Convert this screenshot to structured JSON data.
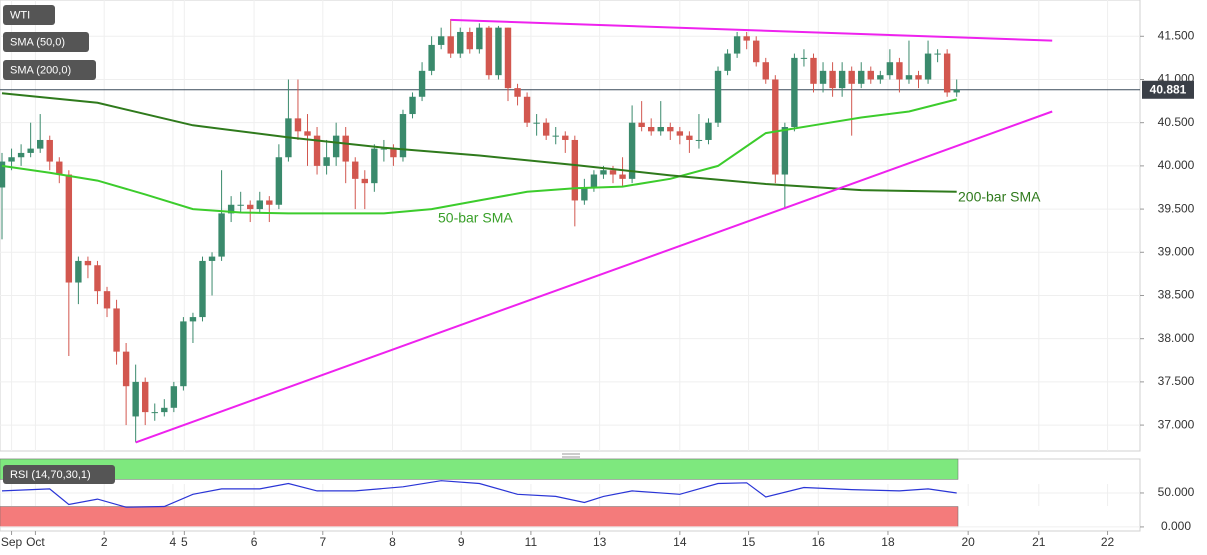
{
  "chart_data": [
    {
      "type": "candlestick",
      "title": "WTI",
      "up_color": "#3a8a6c",
      "down_color": "#d2574f",
      "open": [
        39.75,
        40.05,
        40.1,
        40.15,
        40.2,
        40.3,
        40.05,
        39.9,
        38.65,
        38.9,
        38.85,
        38.55,
        38.35,
        37.85,
        37.1,
        37.5,
        37.15,
        37.15,
        37.2,
        37.45,
        38.2,
        38.25,
        38.9,
        38.95,
        39.45,
        39.55,
        39.55,
        39.5,
        39.6,
        39.55,
        40.1,
        40.55,
        40.4,
        40.35,
        40.0,
        40.1,
        40.35,
        40.05,
        39.85,
        39.8,
        40.2,
        40.2,
        40.1,
        40.6,
        40.8,
        41.1,
        41.4,
        41.5,
        41.3,
        41.55,
        41.35,
        41.6,
        41.05,
        41.6,
        40.9,
        40.8,
        40.5,
        40.5,
        40.35,
        40.35,
        40.3,
        39.6,
        39.75,
        39.9,
        39.95,
        39.9,
        39.85,
        40.5,
        40.45,
        40.4,
        40.45,
        40.4,
        40.35,
        40.3,
        40.3,
        40.5,
        41.1,
        41.3,
        41.5,
        41.45,
        41.2,
        41.0,
        39.9,
        40.45,
        41.25,
        41.25,
        40.95,
        41.1,
        40.9,
        41.1,
        40.95,
        41.1,
        41.0,
        41.05,
        41.2,
        41.0,
        41.05,
        41.0,
        41.3,
        41.3,
        40.85
      ],
      "high": [
        40.15,
        40.2,
        40.25,
        40.5,
        40.6,
        40.35,
        40.1,
        39.95,
        38.95,
        38.95,
        38.9,
        38.6,
        38.45,
        37.95,
        37.7,
        37.55,
        37.25,
        37.3,
        37.5,
        38.25,
        38.3,
        38.95,
        39.0,
        39.95,
        39.65,
        39.7,
        39.6,
        39.7,
        39.65,
        40.25,
        41.0,
        41.0,
        40.6,
        40.45,
        40.3,
        40.5,
        40.45,
        40.1,
        39.95,
        40.25,
        40.3,
        40.25,
        40.65,
        40.85,
        41.2,
        41.5,
        41.6,
        41.7,
        41.6,
        41.6,
        41.65,
        41.62,
        41.62,
        41.6,
        40.95,
        40.85,
        40.6,
        40.55,
        40.45,
        40.4,
        40.35,
        39.85,
        39.95,
        40.0,
        40.0,
        40.1,
        40.7,
        40.75,
        40.55,
        40.75,
        40.5,
        40.45,
        40.4,
        40.6,
        40.55,
        41.15,
        41.35,
        41.55,
        41.55,
        41.5,
        41.25,
        41.05,
        40.5,
        41.3,
        41.35,
        41.3,
        41.2,
        41.2,
        41.2,
        41.15,
        41.2,
        41.15,
        41.1,
        41.35,
        41.25,
        41.45,
        41.1,
        41.45,
        41.35,
        41.35,
        41.0
      ],
      "low": [
        39.15,
        39.95,
        40.0,
        40.1,
        40.15,
        39.95,
        39.8,
        37.8,
        38.4,
        38.7,
        38.4,
        38.25,
        37.7,
        37.0,
        36.8,
        37.0,
        37.05,
        37.1,
        37.15,
        37.4,
        37.95,
        38.2,
        38.5,
        38.9,
        39.35,
        39.45,
        39.35,
        39.45,
        39.35,
        39.5,
        40.05,
        40.3,
        40.0,
        39.9,
        39.9,
        40.0,
        39.8,
        39.5,
        39.5,
        39.7,
        40.05,
        40.0,
        40.05,
        40.55,
        40.75,
        41.05,
        41.35,
        41.25,
        41.25,
        41.3,
        41.3,
        41.0,
        41.0,
        40.75,
        40.7,
        40.45,
        40.35,
        40.3,
        40.25,
        40.15,
        39.3,
        39.55,
        39.7,
        39.85,
        39.8,
        39.75,
        39.8,
        40.4,
        40.35,
        40.35,
        40.3,
        40.25,
        40.15,
        40.2,
        40.25,
        40.45,
        41.05,
        41.25,
        41.35,
        41.15,
        40.95,
        39.8,
        39.5,
        40.4,
        41.15,
        40.85,
        40.85,
        40.8,
        40.8,
        40.35,
        40.9,
        40.95,
        40.95,
        41.0,
        40.85,
        40.95,
        40.9,
        40.95,
        41.2,
        40.8,
        40.8
      ],
      "close": [
        40.05,
        40.1,
        40.15,
        40.2,
        40.3,
        40.05,
        39.9,
        38.65,
        38.9,
        38.85,
        38.55,
        38.35,
        37.85,
        37.45,
        37.5,
        37.15,
        37.15,
        37.2,
        37.45,
        38.2,
        38.25,
        38.9,
        38.95,
        39.45,
        39.55,
        39.55,
        39.5,
        39.6,
        39.55,
        40.1,
        40.55,
        40.4,
        40.35,
        40.0,
        40.1,
        40.35,
        40.05,
        39.85,
        39.8,
        40.2,
        40.2,
        40.1,
        40.6,
        40.8,
        41.1,
        41.4,
        41.5,
        41.3,
        41.55,
        41.35,
        41.6,
        41.05,
        41.6,
        40.9,
        40.8,
        40.5,
        40.5,
        40.35,
        40.35,
        40.3,
        39.6,
        39.75,
        39.9,
        39.95,
        39.9,
        39.85,
        40.5,
        40.45,
        40.4,
        40.45,
        40.4,
        40.35,
        40.3,
        40.3,
        40.5,
        41.1,
        41.3,
        41.5,
        41.45,
        41.2,
        41.0,
        39.9,
        40.45,
        41.25,
        41.25,
        40.95,
        41.1,
        40.9,
        41.1,
        40.95,
        41.1,
        41.0,
        41.05,
        41.2,
        41.0,
        41.05,
        41.0,
        41.3,
        41.3,
        40.85,
        40.88
      ],
      "series": [
        {
          "name": "SMA (50,0)",
          "color": "#3ccc2c",
          "x": [
            0,
            5,
            10,
            15,
            20,
            25,
            30,
            35,
            40,
            45,
            50,
            55,
            60,
            65,
            70,
            75,
            80,
            85,
            90,
            95,
            100
          ],
          "values": [
            40.0,
            39.92,
            39.83,
            39.67,
            39.5,
            39.46,
            39.45,
            39.45,
            39.45,
            39.5,
            39.6,
            39.7,
            39.74,
            39.76,
            39.85,
            40.0,
            40.38,
            40.47,
            40.56,
            40.63,
            40.77
          ]
        },
        {
          "name": "SMA (200,0)",
          "color": "#2f7a1c",
          "x": [
            0,
            10,
            20,
            30,
            40,
            50,
            60,
            70,
            80,
            90,
            100
          ],
          "values": [
            40.84,
            40.73,
            40.47,
            40.33,
            40.21,
            40.12,
            40.01,
            39.89,
            39.79,
            39.72,
            39.7
          ]
        }
      ],
      "trendlines": [
        {
          "color": "#ee22ee",
          "x": [
            47,
            110
          ],
          "values": [
            41.69,
            41.45
          ]
        },
        {
          "color": "#ee22ee",
          "x": [
            14,
            110
          ],
          "values": [
            36.8,
            40.63
          ]
        }
      ],
      "annotations": [
        {
          "text": "50-bar SMA",
          "color": "#3aa02a"
        },
        {
          "text": "200-bar SMA",
          "color": "#2f7a1c"
        }
      ],
      "current_price": 40.881,
      "xlim": [
        -0.21,
        119.2
      ],
      "xticks": [
        {
          "value": 1.0,
          "label": "Sep"
        },
        {
          "value": 3.5,
          "label": "Oct"
        },
        {
          "value": 10.7,
          "label": "2"
        },
        {
          "value": 17.9,
          "label": "4"
        },
        {
          "value": 19.1,
          "label": "5"
        },
        {
          "value": 26.4,
          "label": "6"
        },
        {
          "value": 33.6,
          "label": "7"
        },
        {
          "value": 40.9,
          "label": "8"
        },
        {
          "value": 48.1,
          "label": "9"
        },
        {
          "value": 55.4,
          "label": "11"
        },
        {
          "value": 62.6,
          "label": "13"
        },
        {
          "value": 71.0,
          "label": "14"
        },
        {
          "value": 78.2,
          "label": "15"
        },
        {
          "value": 85.5,
          "label": "16"
        },
        {
          "value": 92.8,
          "label": "18"
        },
        {
          "value": 101.2,
          "label": "20"
        },
        {
          "value": 108.6,
          "label": "21"
        },
        {
          "value": 115.8,
          "label": "22"
        }
      ],
      "ylim": [
        36.7,
        41.92
      ],
      "yticks": [
        {
          "value": 37,
          "label": "37.000"
        },
        {
          "value": 37.5,
          "label": "37.500"
        },
        {
          "value": 38,
          "label": "38.000"
        },
        {
          "value": 38.5,
          "label": "38.500"
        },
        {
          "value": 39,
          "label": "39.000"
        },
        {
          "value": 39.5,
          "label": "39.500"
        },
        {
          "value": 40,
          "label": "40.000"
        },
        {
          "value": 40.5,
          "label": "40.500"
        },
        {
          "value": 41,
          "label": "41.000"
        },
        {
          "value": 41.5,
          "label": "41.500"
        }
      ],
      "grid": true
    },
    {
      "type": "line",
      "title": "RSI (14,70,30,1)",
      "series": [
        {
          "color": "#2a35d6",
          "x": [
            0,
            5,
            7,
            10,
            13,
            17,
            20,
            23,
            27,
            30,
            33,
            37,
            42,
            46,
            50,
            54,
            58,
            61,
            63,
            66,
            71,
            75,
            78,
            80,
            84,
            89,
            94,
            97,
            100
          ],
          "values": [
            53,
            56,
            33,
            41,
            29,
            30,
            48,
            56,
            56,
            64,
            53,
            53,
            59,
            68,
            64,
            48,
            45,
            36,
            45,
            53,
            48,
            64,
            65,
            44,
            58,
            55,
            53,
            56,
            50
          ]
        }
      ],
      "bands": [
        {
          "from": 70,
          "to": 100,
          "color": "#7ee87e"
        },
        {
          "from": 0,
          "to": 30,
          "color": "#f47b7b"
        }
      ],
      "ylim": [
        -6,
        100
      ],
      "yticks": [
        {
          "value": 50,
          "label": "50.000"
        },
        {
          "value": 0,
          "label": "0.000"
        }
      ],
      "grid": true
    }
  ]
}
